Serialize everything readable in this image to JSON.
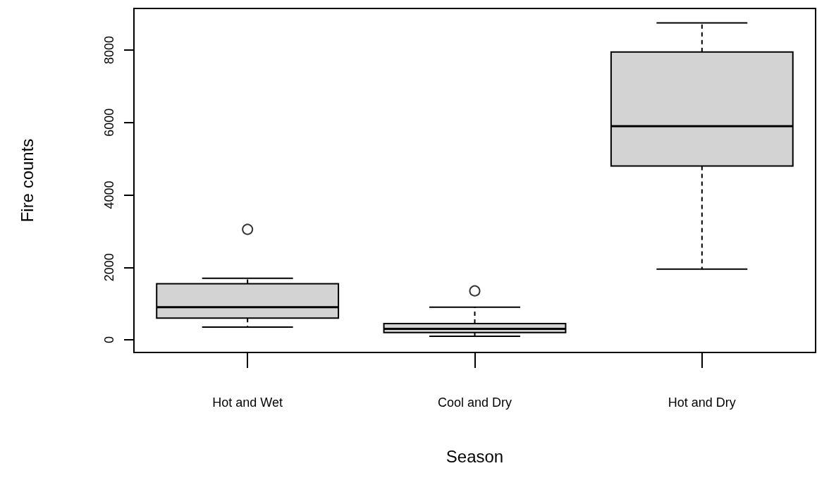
{
  "chart_data": {
    "type": "box",
    "xlabel": "Season",
    "ylabel": "Fire counts",
    "categories": [
      "Hot and Wet",
      "Cool and Dry",
      "Hot and Dry"
    ],
    "boxes": [
      {
        "low": 350,
        "q1": 600,
        "median": 900,
        "q3": 1550,
        "high": 1700,
        "outliers": [
          3050
        ]
      },
      {
        "low": 100,
        "q1": 200,
        "median": 300,
        "q3": 450,
        "high": 900,
        "outliers": [
          1350
        ]
      },
      {
        "low": 1950,
        "q1": 4800,
        "median": 5900,
        "q3": 7950,
        "high": 8750
      }
    ],
    "color": "#d3d3d3",
    "line_style": "dashed",
    "marker": "circle",
    "ylim": [
      -350,
      9150
    ],
    "yticks": [
      0,
      2000,
      4000,
      6000,
      8000
    ]
  }
}
